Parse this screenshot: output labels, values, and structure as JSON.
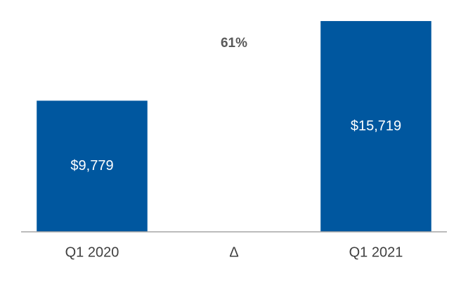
{
  "chart_data": {
    "type": "bar",
    "categories": [
      "Q1 2020",
      "Δ",
      "Q1 2021"
    ],
    "values": [
      9779,
      null,
      15719
    ],
    "value_labels": [
      "$9,779",
      null,
      "$15,719"
    ],
    "annotation": "61%",
    "color": "#00579f",
    "ylim": [
      0,
      16000
    ]
  }
}
